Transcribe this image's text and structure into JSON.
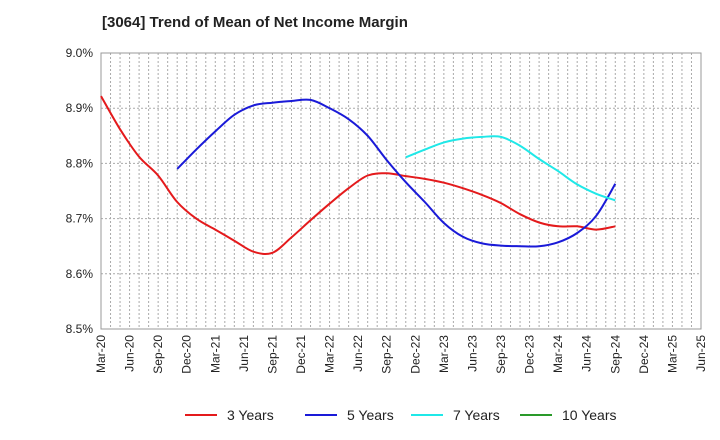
{
  "chart_data": {
    "type": "line",
    "title": "[3064]  Trend of Mean of Net Income Margin",
    "xlabel": "",
    "ylabel": "",
    "x_ticks": [
      "Mar-20",
      "Jun-20",
      "Sep-20",
      "Dec-20",
      "Mar-21",
      "Jun-21",
      "Sep-21",
      "Dec-21",
      "Mar-22",
      "Jun-22",
      "Sep-22",
      "Dec-22",
      "Mar-23",
      "Jun-23",
      "Sep-23",
      "Dec-23",
      "Mar-24",
      "Jun-24",
      "Sep-24",
      "Dec-24",
      "Mar-25",
      "Jun-25"
    ],
    "y_ticks": [
      "8.5%",
      "8.6%",
      "8.7%",
      "8.8%",
      "8.9%",
      "9.0%"
    ],
    "ylim": [
      8.5,
      9.0
    ],
    "grid": true,
    "legend_position": "bottom",
    "series": [
      {
        "name": "3 Years",
        "color": "#e41a1c",
        "values": [
          8.922,
          8.862,
          8.812,
          8.778,
          8.73,
          8.7,
          8.68,
          8.66,
          8.64,
          8.638,
          8.666,
          8.697,
          8.727,
          8.755,
          8.778,
          8.782,
          8.777,
          8.772,
          8.765,
          8.755,
          8.743,
          8.728,
          8.708,
          8.693,
          8.686,
          8.686,
          8.68,
          8.686
        ]
      },
      {
        "name": "5 Years",
        "color": "#1a1ad8",
        "values": [
          null,
          null,
          null,
          null,
          8.79,
          8.825,
          8.858,
          8.888,
          8.905,
          8.91,
          8.913,
          8.915,
          8.9,
          8.88,
          8.85,
          8.806,
          8.766,
          8.73,
          8.692,
          8.667,
          8.655,
          8.651,
          8.65,
          8.65,
          8.657,
          8.674,
          8.705,
          8.763
        ]
      },
      {
        "name": "7 Years",
        "color": "#1fe8e8",
        "values": [
          null,
          null,
          null,
          null,
          null,
          null,
          null,
          null,
          null,
          null,
          null,
          null,
          null,
          null,
          null,
          null,
          8.811,
          8.825,
          8.838,
          8.845,
          8.848,
          8.848,
          8.832,
          8.808,
          8.786,
          8.762,
          8.745,
          8.733
        ]
      },
      {
        "name": "10 Years",
        "color": "#2a9a2a",
        "values": []
      }
    ]
  }
}
